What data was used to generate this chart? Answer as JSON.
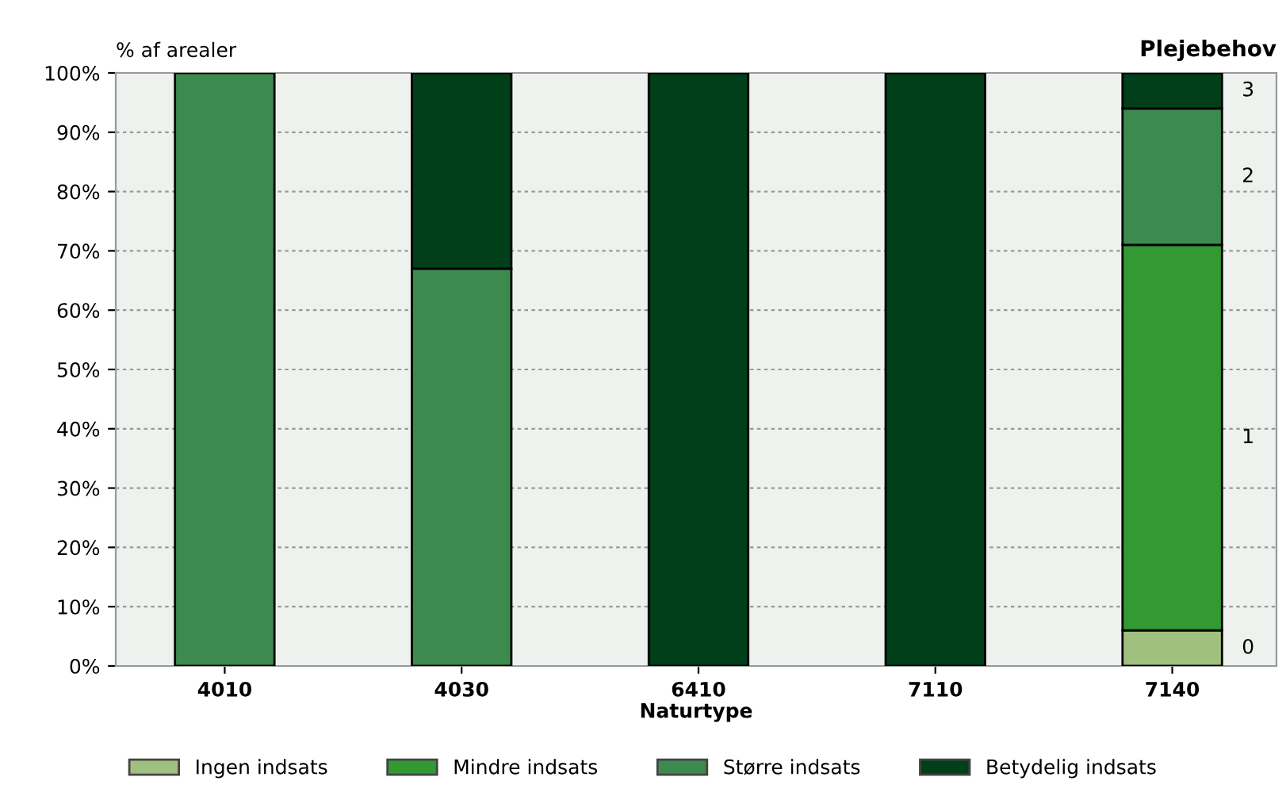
{
  "chart_data": {
    "type": "bar",
    "stacked": true,
    "ylabel": "% af arealer",
    "xlabel": "Naturtype",
    "legend_title": "Plejebehov",
    "categories": [
      "4010",
      "4030",
      "6410",
      "7110",
      "7140"
    ],
    "series": [
      {
        "name": "Ingen indsats",
        "color": "#a0c080",
        "values": [
          null,
          null,
          null,
          null,
          6
        ]
      },
      {
        "name": "Mindre indsats",
        "color": "#339933",
        "values": [
          null,
          null,
          null,
          null,
          65
        ]
      },
      {
        "name": "Større indsats",
        "color": "#3d8a4f",
        "values": [
          100,
          67,
          null,
          null,
          23
        ]
      },
      {
        "name": "Betydelig indsats",
        "color": "#003f1a",
        "values": [
          null,
          33,
          100,
          100,
          6
        ]
      }
    ],
    "ylim": [
      0,
      100
    ],
    "yticks": [
      {
        "value": 0,
        "label": "0%"
      },
      {
        "value": 10,
        "label": "10%"
      },
      {
        "value": 20,
        "label": "20%"
      },
      {
        "value": 30,
        "label": "30%"
      },
      {
        "value": 40,
        "label": "40%"
      },
      {
        "value": 50,
        "label": "50%"
      },
      {
        "value": 60,
        "label": "60%"
      },
      {
        "value": 70,
        "label": "70%"
      },
      {
        "value": 80,
        "label": "80%"
      },
      {
        "value": 90,
        "label": "90%"
      },
      {
        "value": 100,
        "label": "100%"
      }
    ],
    "grid": "y",
    "legend": "bottom",
    "annotations": [
      "0",
      "1",
      "2",
      "3"
    ]
  }
}
